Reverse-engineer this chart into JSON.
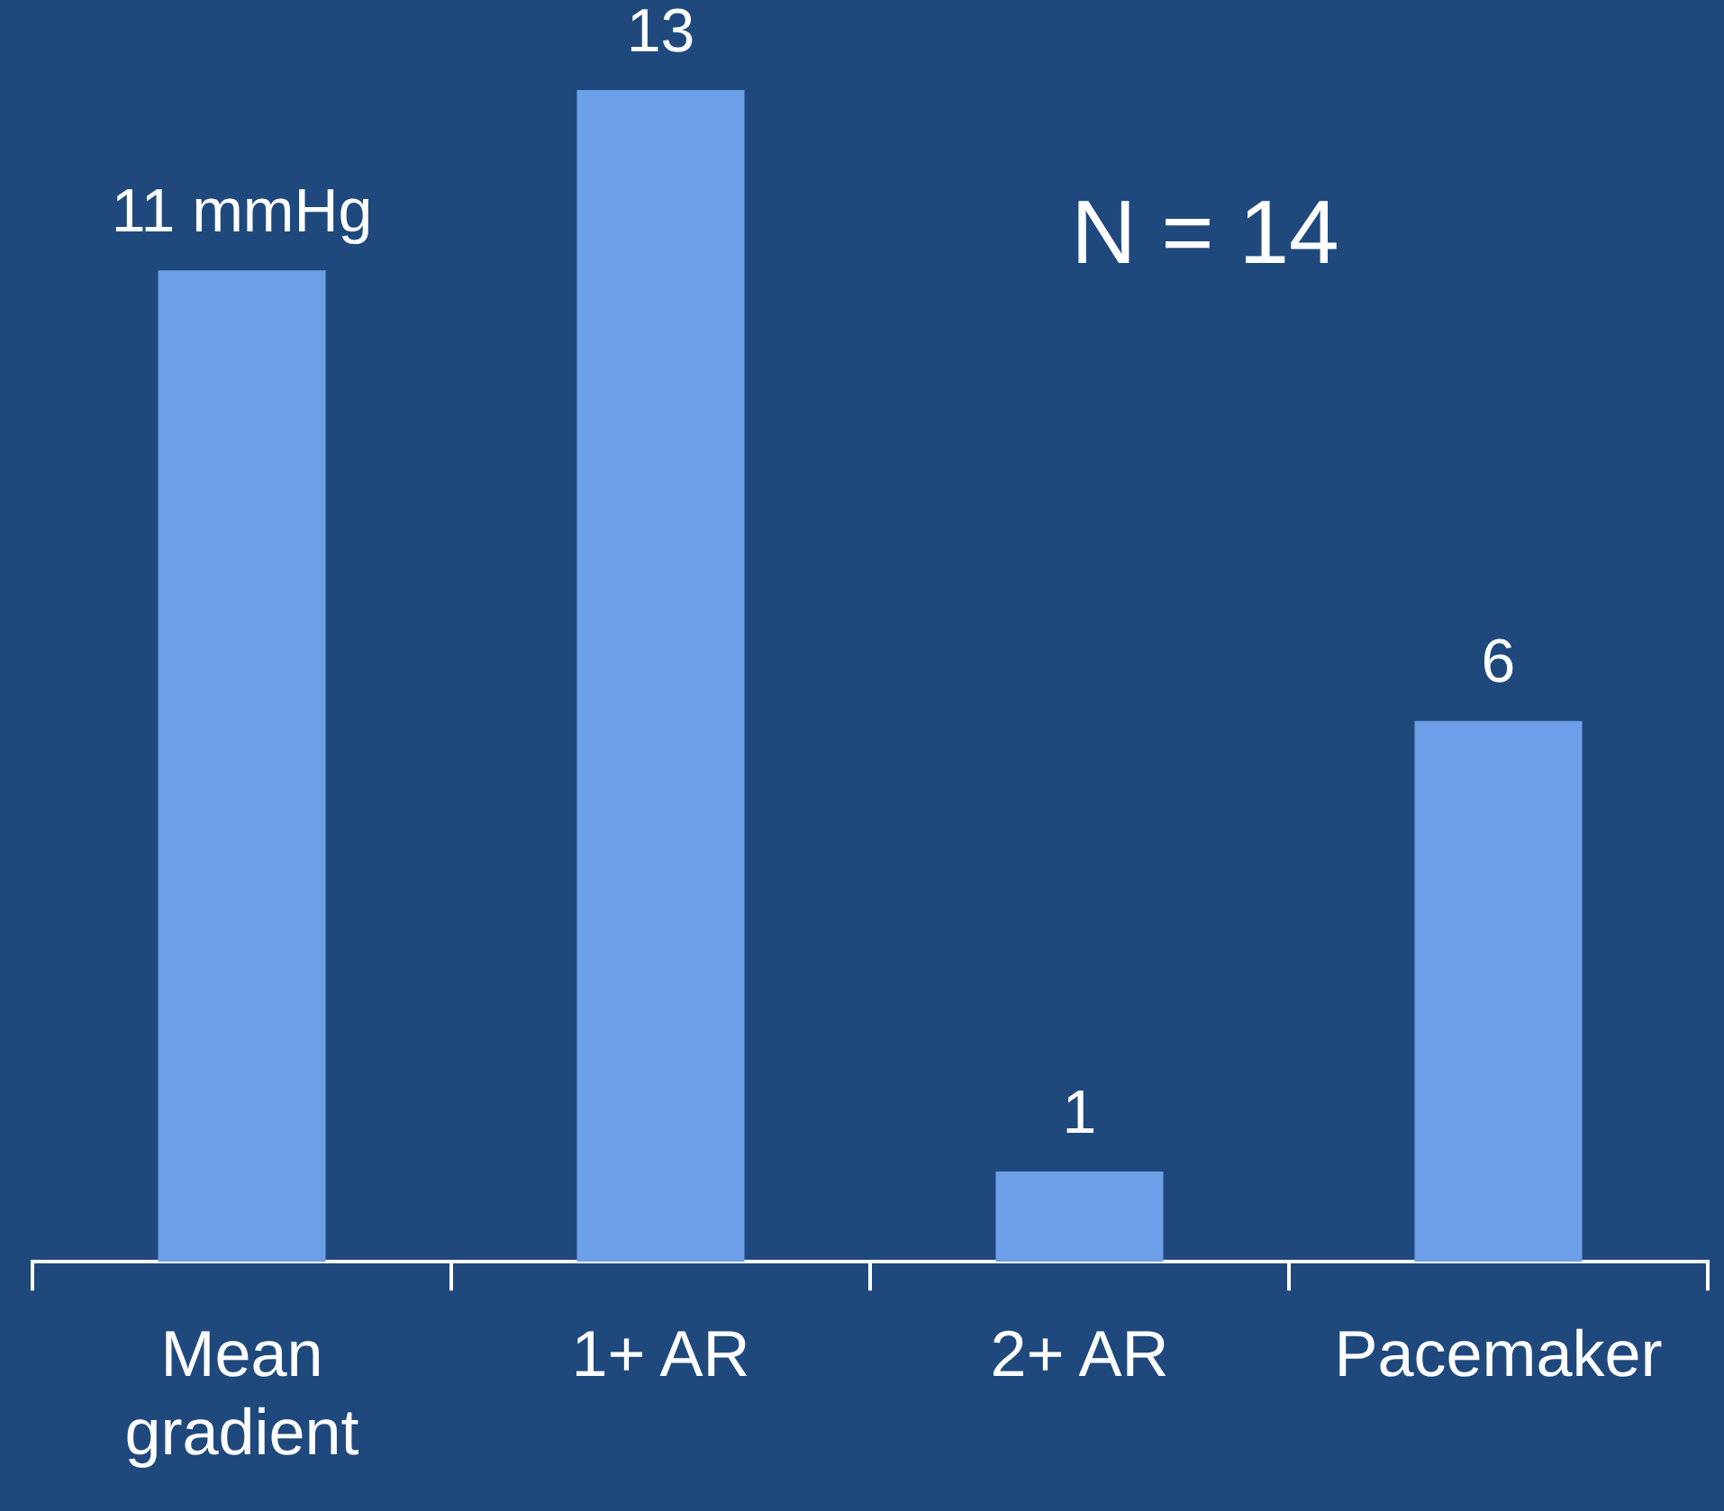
{
  "chart_data": {
    "type": "bar",
    "categories": [
      "Mean gradient",
      "1+ AR",
      "2+ AR",
      "Pacemaker"
    ],
    "values": [
      11,
      13,
      1,
      6
    ],
    "value_labels": [
      "11 mmHg",
      "13",
      "1",
      "6"
    ],
    "color": "#6d9fe8",
    "annotations": [
      "N = 14"
    ],
    "legend": false
  }
}
